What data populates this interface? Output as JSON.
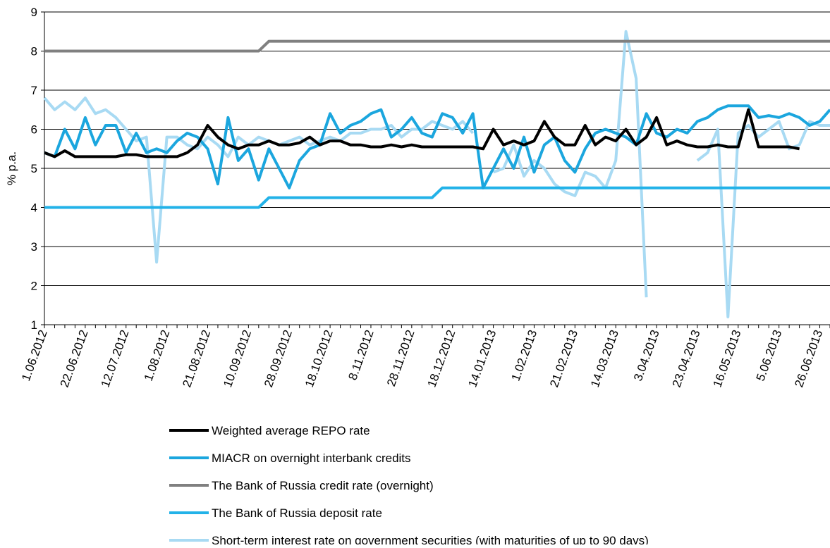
{
  "chart_data": {
    "type": "line",
    "y_label": "% p.a.",
    "categories": [
      "1.06.2012",
      null,
      null,
      null,
      "22.06.2012",
      null,
      null,
      null,
      "12.07.2012",
      null,
      null,
      null,
      "1.08.2012",
      null,
      null,
      null,
      "21.08.2012",
      null,
      null,
      null,
      "10.09.2012",
      null,
      null,
      null,
      "28.09.2012",
      null,
      null,
      null,
      "18.10.2012",
      null,
      null,
      null,
      "8.11.2012",
      null,
      null,
      null,
      "28.11.2012",
      null,
      null,
      null,
      "18.12.2012",
      null,
      null,
      null,
      "14.01.2013",
      null,
      null,
      null,
      "1.02.2013",
      null,
      null,
      null,
      "21.02.2013",
      null,
      null,
      null,
      "14.03.2013",
      null,
      null,
      null,
      "3.04.2013",
      null,
      null,
      null,
      "23.04.2013",
      null,
      null,
      null,
      "16.05.2013",
      null,
      null,
      null,
      "5.06.2013",
      null,
      null,
      null,
      "26.06.2013",
      null
    ],
    "series": [
      {
        "name": "Weighted average REPO rate",
        "color": "#000000",
        "values": [
          5.4,
          5.3,
          5.45,
          5.3,
          5.3,
          5.3,
          5.3,
          5.3,
          5.35,
          5.35,
          5.3,
          5.3,
          5.3,
          5.3,
          5.4,
          5.6,
          6.1,
          5.8,
          5.6,
          5.5,
          5.6,
          5.6,
          5.7,
          5.6,
          5.6,
          5.65,
          5.8,
          5.6,
          5.7,
          5.7,
          5.6,
          5.6,
          5.55,
          5.55,
          5.6,
          5.55,
          5.6,
          5.55,
          5.55,
          5.55,
          5.55,
          5.55,
          5.55,
          5.5,
          6.0,
          5.6,
          5.7,
          5.6,
          5.7,
          6.2,
          5.8,
          5.6,
          5.6,
          6.1,
          5.6,
          5.8,
          5.7,
          6.0,
          5.6,
          5.8,
          6.3,
          5.6,
          5.7,
          5.6,
          5.55,
          5.55,
          5.6,
          5.55,
          5.55,
          6.5,
          5.55,
          5.55,
          5.55,
          5.55,
          5.5,
          null,
          null,
          null
        ]
      },
      {
        "name": "MIACR on overnight interbank credits",
        "color": "#1ba6de",
        "values": [
          5.4,
          5.3,
          6.0,
          5.5,
          6.3,
          5.6,
          6.1,
          6.1,
          5.4,
          5.9,
          5.4,
          5.5,
          5.4,
          5.7,
          5.9,
          5.8,
          5.5,
          4.6,
          6.3,
          5.2,
          5.5,
          4.7,
          5.5,
          5.0,
          4.5,
          5.2,
          5.5,
          5.6,
          6.4,
          5.9,
          6.1,
          6.2,
          6.4,
          6.5,
          5.8,
          6.0,
          6.3,
          5.9,
          5.8,
          6.4,
          6.3,
          5.9,
          6.4,
          4.5,
          5.0,
          5.5,
          5.0,
          5.8,
          4.9,
          5.6,
          5.8,
          5.2,
          4.9,
          5.5,
          5.9,
          6.0,
          5.9,
          5.8,
          5.6,
          6.4,
          5.9,
          5.8,
          6.0,
          5.9,
          6.2,
          6.3,
          6.5,
          6.6,
          6.6,
          6.6,
          6.3,
          6.35,
          6.3,
          6.4,
          6.3,
          6.1,
          6.2,
          6.5
        ]
      },
      {
        "name": "The Bank of Russia credit rate (overnight)",
        "color": "#808080",
        "values": [
          8,
          8,
          8,
          8,
          8,
          8,
          8,
          8,
          8,
          8,
          8,
          8,
          8,
          8,
          8,
          8,
          8,
          8,
          8,
          8,
          8,
          8,
          8.25,
          8.25,
          8.25,
          8.25,
          8.25,
          8.25,
          8.25,
          8.25,
          8.25,
          8.25,
          8.25,
          8.25,
          8.25,
          8.25,
          8.25,
          8.25,
          8.25,
          8.25,
          8.25,
          8.25,
          8.25,
          8.25,
          8.25,
          8.25,
          8.25,
          8.25,
          8.25,
          8.25,
          8.25,
          8.25,
          8.25,
          8.25,
          8.25,
          8.25,
          8.25,
          8.25,
          8.25,
          8.25,
          8.25,
          8.25,
          8.25,
          8.25,
          8.25,
          8.25,
          8.25,
          8.25,
          8.25,
          8.25,
          8.25,
          8.25,
          8.25,
          8.25,
          8.25,
          8.25,
          8.25,
          8.25
        ]
      },
      {
        "name": "The Bank of Russia deposit rate",
        "color": "#22b2e8",
        "values": [
          4,
          4,
          4,
          4,
          4,
          4,
          4,
          4,
          4,
          4,
          4,
          4,
          4,
          4,
          4,
          4,
          4,
          4,
          4,
          4,
          4,
          4,
          4.25,
          4.25,
          4.25,
          4.25,
          4.25,
          4.25,
          4.25,
          4.25,
          4.25,
          4.25,
          4.25,
          4.25,
          4.25,
          4.25,
          4.25,
          4.25,
          4.25,
          4.5,
          4.5,
          4.5,
          4.5,
          4.5,
          4.5,
          4.5,
          4.5,
          4.5,
          4.5,
          4.5,
          4.5,
          4.5,
          4.5,
          4.5,
          4.5,
          4.5,
          4.5,
          4.5,
          4.5,
          4.5,
          4.5,
          4.5,
          4.5,
          4.5,
          4.5,
          4.5,
          4.5,
          4.5,
          4.5,
          4.5,
          4.5,
          4.5,
          4.5,
          4.5,
          4.5,
          4.5,
          4.5,
          4.5
        ]
      },
      {
        "name": "Short-term interest rate on government securities (with maturities of up to 90 days)",
        "color": "#a8daf3",
        "values": [
          6.8,
          6.5,
          6.7,
          6.5,
          6.8,
          6.4,
          6.5,
          6.3,
          6.0,
          5.7,
          5.8,
          2.6,
          5.8,
          5.8,
          5.6,
          5.5,
          5.8,
          5.6,
          5.3,
          5.8,
          5.6,
          5.8,
          5.7,
          5.6,
          5.7,
          5.8,
          5.6,
          5.7,
          5.8,
          5.7,
          5.9,
          5.9,
          6.0,
          6.0,
          6.1,
          5.8,
          6.0,
          6.0,
          6.2,
          6.1,
          6.0,
          6.2,
          5.9,
          null,
          4.9,
          5.0,
          5.6,
          4.8,
          5.2,
          5.0,
          4.6,
          4.4,
          4.3,
          4.9,
          4.8,
          4.5,
          5.2,
          8.5,
          7.3,
          1.7,
          null,
          null,
          null,
          null,
          5.2,
          5.4,
          6.0,
          1.2,
          5.9,
          6.1,
          5.8,
          6.0,
          6.2,
          5.5,
          5.6,
          6.2,
          6.1,
          6.1
        ]
      }
    ],
    "ylim": [
      1,
      9
    ],
    "yticks": [
      1,
      2,
      3,
      4,
      5,
      6,
      7,
      8,
      9
    ],
    "grid": true
  }
}
